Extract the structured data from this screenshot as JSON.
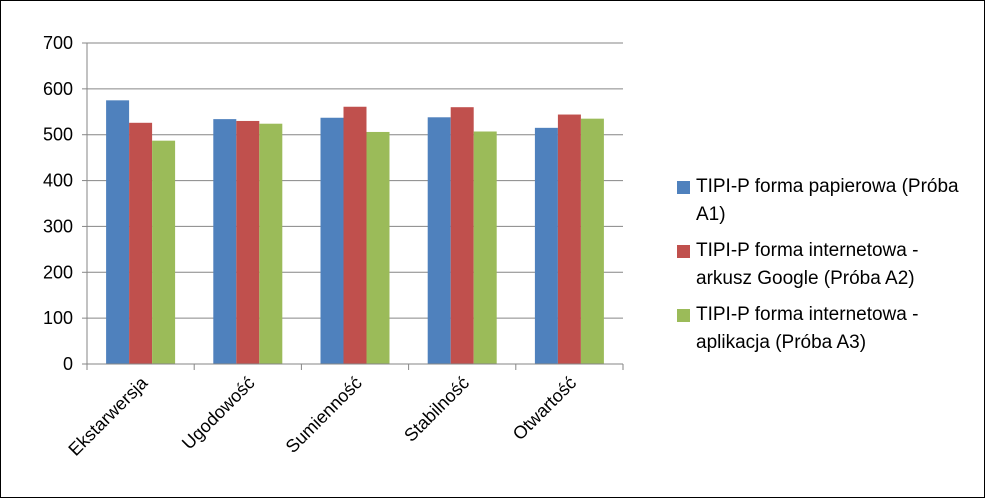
{
  "chart_data": {
    "type": "bar",
    "title": "",
    "xlabel": "",
    "ylabel": "",
    "categories": [
      "Ekstarwersja",
      "Ugodowość",
      "Sumienność",
      "Stabilność",
      "Otwartość"
    ],
    "ylim": [
      0,
      700
    ],
    "yticks": [
      "0",
      "100",
      "200",
      "300",
      "400",
      "500",
      "600",
      "700"
    ],
    "grid": true,
    "legend_position": "right",
    "series": [
      {
        "name": "TIPI-P forma papierowa (Próba A1)",
        "color": "#4F81BD",
        "values": [
          575,
          534,
          537,
          538,
          515
        ]
      },
      {
        "name": "TIPI-P forma internetowa - arkusz Google (Próba A2)",
        "color": "#C0504D",
        "values": [
          526,
          530,
          561,
          560,
          544
        ]
      },
      {
        "name": "TIPI-P forma internetowa - aplikacja (Próba A3)",
        "color": "#9BBB59",
        "values": [
          487,
          524,
          506,
          507,
          535
        ]
      }
    ]
  }
}
